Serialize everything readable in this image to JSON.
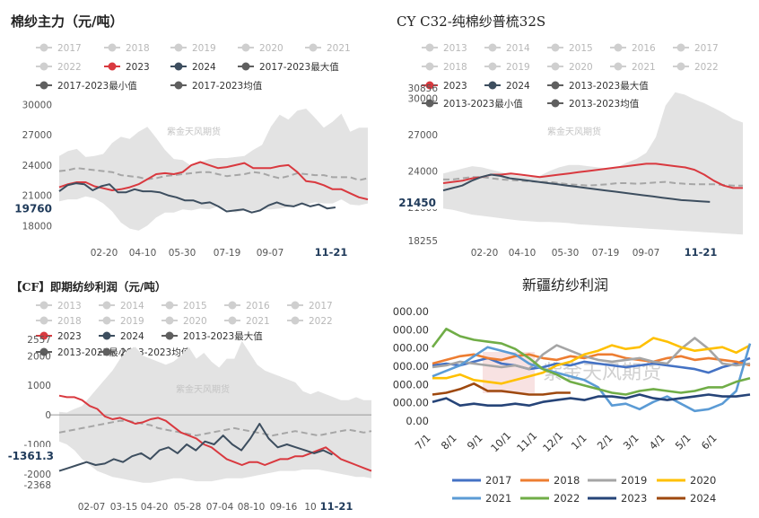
{
  "colors": {
    "band": "#e3e3e3",
    "avg": "#a6a6a6",
    "y2023": "#d9393f",
    "y2024": "#3d4e5f",
    "legendGray": "#cfcfcf",
    "legendDark": "#5f5f5f",
    "s2017": "#4472c4",
    "s2018": "#ed7d31",
    "s2019": "#a5a5a5",
    "s2020": "#ffc000",
    "s2021": "#5b9bd5",
    "s2022": "#70ad47",
    "s2023": "#264478",
    "s2024": "#9e480e"
  },
  "chart_data": [
    {
      "type": "area",
      "title": "棉纱主力（元/吨）",
      "watermark": "紫金天风期货",
      "legend": [
        "2017",
        "2018",
        "2019",
        "2020",
        "2021",
        "2022",
        "2023",
        "2024",
        "2017-2023最大值",
        "2017-2023最小值",
        "2017-2023均值"
      ],
      "x_ticks": [
        "02-20",
        "04-10",
        "05-30",
        "07-19",
        "09-07",
        "11-21"
      ],
      "y_ticks": [
        "30000",
        "27000",
        "24000",
        "21000",
        "18000"
      ],
      "ylim": [
        17400,
        30400
      ],
      "callout": "19760",
      "series": [
        {
          "name": "2017-2023最大值",
          "values": [
            24900,
            25400,
            25600,
            24800,
            24900,
            25100,
            26200,
            26800,
            26600,
            27300,
            27800,
            26700,
            25500,
            24600,
            24500,
            23900,
            24300,
            24600,
            24700,
            24700,
            24800,
            24900,
            25500,
            26000,
            27800,
            29000,
            28500,
            29400,
            29600,
            28700,
            27700,
            28300,
            29100,
            27300,
            27700,
            27700
          ]
        },
        {
          "name": "2017-2023最小值",
          "values": [
            20400,
            20600,
            20600,
            20900,
            20700,
            20200,
            19400,
            18300,
            17700,
            17500,
            18000,
            18800,
            19300,
            19300,
            19600,
            19500,
            19700,
            19600,
            19900,
            19600,
            19300,
            19500,
            19500,
            19600,
            19600,
            19700,
            19800,
            20100,
            20100,
            20300,
            20200,
            20200,
            20600,
            20100,
            20000,
            20200
          ]
        },
        {
          "name": "2017-2023均值",
          "values": [
            23400,
            23500,
            23700,
            23600,
            23500,
            23400,
            23300,
            23000,
            22900,
            22800,
            22600,
            22700,
            22900,
            23000,
            23100,
            23200,
            23300,
            23300,
            23100,
            22900,
            23000,
            23100,
            23300,
            23200,
            22900,
            22700,
            22900,
            23200,
            23100,
            23000,
            23000,
            22800,
            22800,
            22800,
            22500,
            22700
          ]
        },
        {
          "name": "2023",
          "values": [
            21800,
            22100,
            22300,
            22300,
            21900,
            21700,
            21500,
            21600,
            21800,
            22100,
            22600,
            23100,
            23200,
            23100,
            23300,
            24000,
            24300,
            24000,
            23700,
            23800,
            24000,
            24200,
            23700,
            23700,
            23700,
            23900,
            24000,
            23300,
            22400,
            22300,
            22000,
            21600,
            21600,
            21200,
            20800,
            20600
          ]
        },
        {
          "name": "2024",
          "values": [
            21400,
            22000,
            22200,
            22100,
            21500,
            21900,
            22100,
            21300,
            21300,
            21600,
            21400,
            21400,
            21300,
            21000,
            20800,
            20500,
            20500,
            20200,
            20300,
            19900,
            19400,
            19500,
            19600,
            19300,
            19500,
            20000,
            20300,
            20000,
            19900,
            20200,
            19900,
            20100,
            19700,
            19800
          ]
        }
      ]
    },
    {
      "type": "area",
      "title": "CY C32-纯棉纱普梳32S",
      "watermark": "紫金天风期货",
      "legend": [
        "2013",
        "2014",
        "2015",
        "2016",
        "2017",
        "2018",
        "2019",
        "2020",
        "2021",
        "2022",
        "2023",
        "2024",
        "2013-2023最大值",
        "2013-2023最小值",
        "2013-2023均值"
      ],
      "x_ticks": [
        "02-20",
        "04-10",
        "05-30",
        "07-19",
        "09-07",
        "11-21"
      ],
      "y_ticks": [
        "30856",
        "30000",
        "27000",
        "24000",
        "21000",
        "18255"
      ],
      "ylim": [
        18255,
        30856
      ],
      "callout": "21450",
      "series": [
        {
          "name": "2013-2023最大值",
          "values": [
            23800,
            24000,
            24200,
            24400,
            24300,
            24100,
            23900,
            23700,
            23600,
            23500,
            23600,
            24000,
            24300,
            24500,
            24500,
            24400,
            24300,
            24200,
            24300,
            24700,
            25000,
            25500,
            26800,
            29400,
            30500,
            30300,
            29900,
            29600,
            29200,
            28800,
            28300,
            28000
          ]
        },
        {
          "name": "2013-2023最小值",
          "values": [
            20900,
            20800,
            20600,
            20400,
            20300,
            20200,
            20100,
            20000,
            19900,
            19850,
            19800,
            19800,
            19750,
            19700,
            19600,
            19550,
            19500,
            19450,
            19400,
            19350,
            19300,
            19250,
            19200,
            19150,
            19100,
            19050,
            19000,
            18950,
            18900,
            18850,
            18800,
            18750
          ]
        },
        {
          "name": "2013-2023均值",
          "values": [
            23300,
            23300,
            23400,
            23500,
            23500,
            23400,
            23300,
            23250,
            23200,
            23150,
            23100,
            23100,
            23000,
            22900,
            22850,
            22800,
            22850,
            22900,
            23000,
            23000,
            22950,
            23000,
            23050,
            23100,
            23000,
            22950,
            22900,
            22900,
            22900,
            22850,
            22800,
            22800
          ]
        },
        {
          "name": "2023",
          "values": [
            23000,
            23100,
            23200,
            23400,
            23500,
            23700,
            23700,
            23800,
            23700,
            23600,
            23500,
            23600,
            23700,
            23800,
            23900,
            24000,
            24100,
            24200,
            24300,
            24400,
            24500,
            24600,
            24600,
            24500,
            24400,
            24300,
            24100,
            23700,
            23200,
            22800,
            22600,
            22600
          ]
        },
        {
          "name": "2024",
          "values": [
            22400,
            22600,
            22800,
            23200,
            23500,
            23700,
            23600,
            23400,
            23300,
            23200,
            23100,
            23000,
            22900,
            22800,
            22700,
            22600,
            22500,
            22400,
            22300,
            22200,
            22100,
            22000,
            21900,
            21800,
            21700,
            21600,
            21550,
            21500,
            21450
          ]
        }
      ]
    },
    {
      "type": "area",
      "title": "【CF】即期纺纱利润（元/吨）",
      "watermark": "紫金天风期货",
      "legend": [
        "2013",
        "2014",
        "2015",
        "2016",
        "2017",
        "2018",
        "2019",
        "2020",
        "2021",
        "2022",
        "2023",
        "2024",
        "2013-2023最大值",
        "2013-2023最小值",
        "2013-2023均值"
      ],
      "x_ticks": [
        "02-07",
        "03-15",
        "04-20",
        "05-28",
        "07-04",
        "08-10",
        "09-16",
        "10",
        "11-21"
      ],
      "y_ticks": [
        "2557",
        "2000",
        "1000",
        "0",
        "-1000",
        "-2000",
        "-2368"
      ],
      "ylim": [
        -2368,
        2557
      ],
      "callout": "-1361.3",
      "series": [
        {
          "name": "2013-2023最大值",
          "values": [
            100,
            80,
            200,
            300,
            600,
            900,
            1200,
            1500,
            1900,
            2200,
            2300,
            2000,
            1900,
            1800,
            1700,
            1800,
            2000,
            2300,
            1900,
            2100,
            1800,
            1600,
            1900,
            1900,
            2500,
            2100,
            1700,
            1500,
            1400,
            1300,
            1200,
            1100,
            800,
            700,
            800,
            700,
            600,
            500,
            500,
            600,
            500,
            500
          ]
        },
        {
          "name": "2013-2023最小值",
          "values": [
            -900,
            -1000,
            -1200,
            -1500,
            -1700,
            -1900,
            -2000,
            -2100,
            -2150,
            -2200,
            -2250,
            -2300,
            -2300,
            -2250,
            -2200,
            -2150,
            -2150,
            -2200,
            -2250,
            -2250,
            -2250,
            -2200,
            -2150,
            -2150,
            -2150,
            -2100,
            -2050,
            -2000,
            -1950,
            -1900,
            -1900,
            -1900,
            -1850,
            -1850,
            -1850,
            -1900,
            -1950,
            -2000,
            -2050,
            -2100,
            -2100,
            -2150
          ]
        },
        {
          "name": "2013-2023均值",
          "values": [
            -600,
            -550,
            -500,
            -450,
            -400,
            -350,
            -300,
            -250,
            -200,
            -200,
            -250,
            -300,
            -350,
            -450,
            -500,
            -550,
            -600,
            -650,
            -700,
            -650,
            -600,
            -550,
            -500,
            -450,
            -500,
            -550,
            -600,
            -650,
            -700,
            -650,
            -600,
            -550,
            -600,
            -650,
            -700,
            -650,
            -600,
            -550,
            -500,
            -550,
            -600,
            -550
          ]
        },
        {
          "name": "2023",
          "values": [
            650,
            600,
            600,
            500,
            300,
            200,
            -50,
            -150,
            -100,
            -200,
            -300,
            -250,
            -150,
            -100,
            -200,
            -400,
            -600,
            -700,
            -800,
            -1000,
            -1100,
            -1300,
            -1500,
            -1600,
            -1700,
            -1600,
            -1600,
            -1700,
            -1600,
            -1500,
            -1500,
            -1400,
            -1400,
            -1300,
            -1200,
            -1100,
            -1300,
            -1500,
            -1600,
            -1700,
            -1800,
            -1900
          ]
        },
        {
          "name": "2024",
          "values": [
            -1900,
            -1800,
            -1700,
            -1600,
            -1700,
            -1650,
            -1500,
            -1600,
            -1400,
            -1300,
            -1500,
            -1200,
            -1100,
            -1300,
            -1000,
            -1200,
            -900,
            -1000,
            -700,
            -1000,
            -1200,
            -800,
            -300,
            -800,
            -1100,
            -1000,
            -1100,
            -1200,
            -1300,
            -1200,
            -1350
          ]
        }
      ]
    },
    {
      "type": "line",
      "title": "新疆纺纱利润",
      "watermark": "紫金天风期货",
      "x_ticks": [
        "7/1",
        "8/1",
        "9/1",
        "10/1",
        "11/1",
        "12/1",
        "1/1",
        "2/1",
        "3/1",
        "4/1",
        "5/1",
        "6/1"
      ],
      "y_ticks": [
        "000.00",
        "000.00",
        "000.00",
        "000.00",
        "000.00",
        "000.00",
        "0.00"
      ],
      "ylim": [
        0,
        6
      ],
      "series": [
        {
          "name": "2017",
          "values": [
            3.0,
            3.1,
            3.0,
            3.2,
            3.4,
            3.1,
            3.0,
            2.8,
            2.9,
            3.1,
            3.0,
            3.2,
            3.1,
            3.0,
            2.9,
            3.0,
            3.1,
            3.0,
            2.9,
            2.8,
            2.6,
            2.9,
            3.1,
            3.4
          ]
        },
        {
          "name": "2018",
          "values": [
            3.1,
            3.3,
            3.5,
            3.6,
            3.4,
            3.3,
            3.5,
            3.6,
            3.4,
            3.3,
            3.5,
            3.4,
            3.6,
            3.6,
            3.4,
            3.3,
            3.2,
            3.4,
            3.5,
            3.3,
            3.4,
            3.3,
            3.2,
            3.0
          ]
        },
        {
          "name": "2019",
          "values": [
            2.9,
            3.0,
            3.2,
            3.1,
            3.0,
            2.9,
            3.0,
            2.8,
            3.6,
            4.1,
            3.8,
            3.5,
            3.3,
            3.2,
            3.3,
            3.4,
            3.2,
            3.1,
            3.9,
            4.5,
            3.9,
            3.1,
            3.0,
            3.1
          ]
        },
        {
          "name": "2020",
          "values": [
            2.3,
            2.3,
            2.5,
            2.2,
            2.1,
            2.0,
            2.2,
            2.4,
            2.6,
            3.0,
            3.2,
            3.6,
            3.8,
            4.1,
            3.9,
            4.0,
            4.5,
            4.3,
            4.0,
            3.8,
            3.9,
            4.0,
            3.7,
            4.1
          ]
        },
        {
          "name": "2021",
          "values": [
            2.4,
            2.7,
            3.0,
            3.5,
            4.0,
            3.8,
            3.6,
            3.1,
            2.8,
            2.6,
            2.4,
            2.2,
            1.8,
            0.8,
            0.9,
            0.6,
            1.0,
            1.3,
            0.9,
            0.5,
            0.6,
            0.9,
            1.6,
            4.2
          ]
        },
        {
          "name": "2022",
          "values": [
            4.0,
            5.0,
            4.6,
            4.4,
            4.3,
            4.2,
            3.9,
            3.4,
            2.8,
            2.5,
            2.1,
            1.9,
            1.7,
            1.5,
            1.4,
            1.6,
            1.7,
            1.6,
            1.5,
            1.6,
            1.8,
            1.8,
            2.1,
            2.3
          ]
        },
        {
          "name": "2023",
          "values": [
            1.0,
            1.2,
            0.8,
            0.9,
            0.8,
            0.8,
            0.9,
            0.8,
            1.0,
            1.1,
            1.2,
            1.1,
            1.3,
            1.3,
            1.2,
            1.4,
            1.2,
            1.1,
            1.2,
            1.3,
            1.4,
            1.3,
            1.3,
            1.4
          ]
        },
        {
          "name": "2024",
          "values": [
            1.4,
            1.5,
            1.7,
            2.0,
            1.6,
            1.6,
            1.5,
            1.4,
            1.4,
            1.5,
            1.5
          ]
        }
      ]
    }
  ]
}
